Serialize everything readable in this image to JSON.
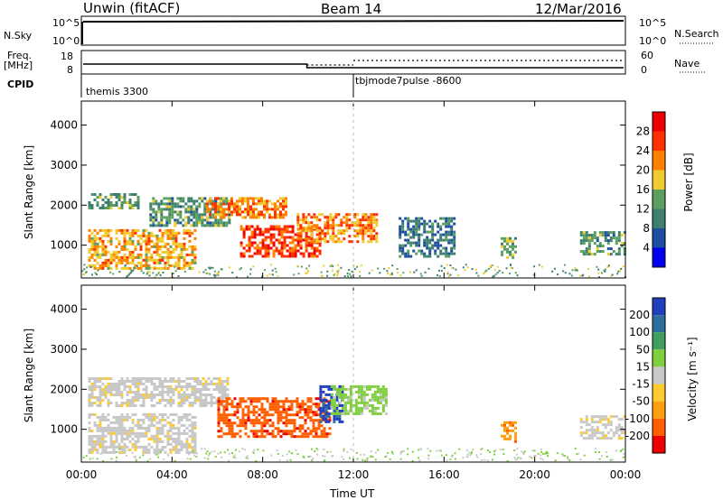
{
  "header": {
    "station": "Unwin (fitACF)",
    "beam": "Beam 14",
    "date": "12/Mar/2016"
  },
  "strip_labels": {
    "nsky": "N.Sky",
    "nsky_ticks": [
      "10^5",
      "10^0"
    ],
    "nsearch": "N.Search",
    "nsearch_ticks": [
      "10^5",
      "10^0"
    ],
    "freq": "Freq.",
    "freq_unit": "[MHz]",
    "freq_ticks": [
      "18",
      "8"
    ],
    "nave": "Nave",
    "nave_ticks": [
      "60",
      "0"
    ],
    "cpid": "CPID"
  },
  "cpid_segments": [
    {
      "label": "themis 3300",
      "start_hour": 0,
      "end_hour": 12
    },
    {
      "label": "tbjmode7pulse -8600",
      "start_hour": 12,
      "end_hour": 24
    }
  ],
  "colors": {
    "power_scale": [
      "#0000ee",
      "#1d4fa0",
      "#3e7f6e",
      "#5ba060",
      "#f0cc30",
      "#ff8000",
      "#ff3000",
      "#ee0000"
    ],
    "velocity_scale": [
      "#1f3fbf",
      "#2f6f9f",
      "#3f9f5f",
      "#7fcf3f",
      "#c8c8c8",
      "#ffcc30",
      "#ff9f10",
      "#ff5f00",
      "#ee0000"
    ]
  },
  "chart_data": [
    {
      "type": "heatmap",
      "panel": "power",
      "xlabel": "",
      "ylabel": "Slant Range [km]",
      "x_ticks": [
        "00:00",
        "04:00",
        "08:00",
        "12:00",
        "16:00",
        "20:00",
        "00:00"
      ],
      "y_ticks": [
        1000,
        2000,
        3000,
        4000
      ],
      "xlim_hours": [
        0,
        24
      ],
      "ylim_km": [
        180,
        4600
      ],
      "colorbar_label": "Power [dB]",
      "colorbar_ticks": [
        4,
        8,
        12,
        16,
        20,
        24,
        28
      ],
      "colorbar_range": [
        0,
        32
      ],
      "regions": [
        {
          "t0": 0.3,
          "t1": 5.0,
          "r0": 450,
          "r1": 1400,
          "value": 20
        },
        {
          "t0": 0.3,
          "t1": 2.5,
          "r0": 1900,
          "r1": 2300,
          "value": 13
        },
        {
          "t0": 3.0,
          "t1": 6.5,
          "r0": 1500,
          "r1": 2200,
          "value": 12
        },
        {
          "t0": 5.5,
          "t1": 9.0,
          "r0": 1700,
          "r1": 2200,
          "value": 22
        },
        {
          "t0": 7.0,
          "t1": 10.5,
          "r0": 700,
          "r1": 1500,
          "value": 26
        },
        {
          "t0": 9.5,
          "t1": 13.0,
          "r0": 1100,
          "r1": 1800,
          "value": 22
        },
        {
          "t0": 14.0,
          "t1": 16.5,
          "r0": 700,
          "r1": 1700,
          "value": 9
        },
        {
          "t0": 18.5,
          "t1": 19.2,
          "r0": 700,
          "r1": 1200,
          "value": 14
        },
        {
          "t0": 22.0,
          "t1": 24.0,
          "r0": 800,
          "r1": 1350,
          "value": 12
        }
      ]
    },
    {
      "type": "heatmap",
      "panel": "velocity",
      "xlabel": "Time UT",
      "ylabel": "Slant Range [km]",
      "x_ticks": [
        "00:00",
        "04:00",
        "08:00",
        "12:00",
        "16:00",
        "20:00",
        "00:00"
      ],
      "y_ticks": [
        1000,
        2000,
        3000,
        4000
      ],
      "xlim_hours": [
        0,
        24
      ],
      "ylim_km": [
        180,
        4600
      ],
      "colorbar_label": "Velocity [m s⁻¹]",
      "colorbar_ticks": [
        -200,
        -100,
        -50,
        -15,
        15,
        50,
        100,
        200
      ],
      "regions": [
        {
          "t0": 0.3,
          "t1": 5.0,
          "r0": 450,
          "r1": 1400,
          "value": 0
        },
        {
          "t0": 0.3,
          "t1": 6.5,
          "r0": 1600,
          "r1": 2300,
          "value": 0
        },
        {
          "t0": 6.0,
          "t1": 11.0,
          "r0": 800,
          "r1": 1800,
          "value": -110
        },
        {
          "t0": 10.5,
          "t1": 11.5,
          "r0": 1200,
          "r1": 2100,
          "value": 220
        },
        {
          "t0": 11.0,
          "t1": 13.5,
          "r0": 1400,
          "r1": 2100,
          "value": 30
        },
        {
          "t0": 18.5,
          "t1": 19.2,
          "r0": 700,
          "r1": 1200,
          "value": -60
        },
        {
          "t0": 22.0,
          "t1": 24.0,
          "r0": 800,
          "r1": 1350,
          "value": 0
        }
      ]
    }
  ]
}
